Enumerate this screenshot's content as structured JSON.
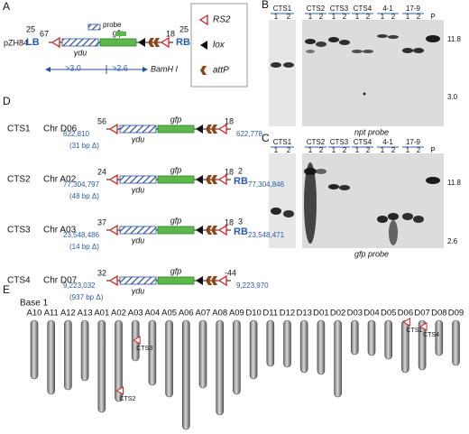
{
  "panel_a": {
    "letter": "A",
    "plasmid": "pZH84",
    "lb": "LB",
    "lb_len": "25",
    "left_gap": "67",
    "probe": "probe",
    "gfp": "gfp",
    "ydu": "γdu",
    "right_gap": "18",
    "rb": "RB",
    "rb_len": "25",
    "frag_left": ">3.0",
    "frag_right": ">2.6",
    "enzyme": "BamH I"
  },
  "legend": [
    "RS2",
    "lox",
    "attP"
  ],
  "panel_b": {
    "letter": "B",
    "groups": [
      {
        "name": "CTS1",
        "lanes": [
          "1",
          "2"
        ]
      },
      {
        "name": "CTS2",
        "lanes": [
          "1",
          "2"
        ]
      },
      {
        "name": "CTS3",
        "lanes": [
          "1",
          "2"
        ]
      },
      {
        "name": "CTS4",
        "lanes": [
          "1",
          "2"
        ]
      },
      {
        "name": "4-1",
        "lanes": [
          "1",
          "2"
        ]
      },
      {
        "name": "17-9",
        "lanes": [
          "1",
          "2"
        ]
      }
    ],
    "parent": "P",
    "markers": [
      "11.8",
      "3.0"
    ],
    "probe": "npt probe"
  },
  "panel_c": {
    "letter": "C",
    "groups": [
      {
        "name": "CTS1",
        "lanes": [
          "1",
          "2"
        ]
      },
      {
        "name": "CTS2",
        "lanes": [
          "1",
          "2"
        ]
      },
      {
        "name": "CTS3",
        "lanes": [
          "1",
          "2"
        ]
      },
      {
        "name": "CTS4",
        "lanes": [
          "1",
          "2"
        ]
      },
      {
        "name": "4-1",
        "lanes": [
          "1",
          "2"
        ]
      },
      {
        "name": "17-9",
        "lanes": [
          "1",
          "2"
        ]
      }
    ],
    "parent": "P",
    "markers": [
      "11.8",
      "2.6"
    ],
    "probe": "gfp probe"
  },
  "panel_d": {
    "letter": "D",
    "rows": [
      {
        "line": "CTS1",
        "chr": "Chr D06",
        "left_gap": "56",
        "right_gap": "18",
        "left_coord": "622,810",
        "deletion": "(31 bp Δ)",
        "right_coord": "622,778"
      },
      {
        "line": "CTS2",
        "chr": "Chr A02",
        "left_gap": "24",
        "right_gap": "18",
        "rb_len": "2",
        "rb": "RB",
        "left_coord": "77,304,797",
        "deletion": "(48 bp Δ)",
        "right_coord": "77,304,846"
      },
      {
        "line": "CTS3",
        "chr": "Chr A03",
        "left_gap": "37",
        "right_gap": "18",
        "rb_len": "3",
        "rb": "RB",
        "left_coord": "23,548,486",
        "deletion": "(14 bp Δ)",
        "right_coord": "23,548,471"
      },
      {
        "line": "CTS4",
        "chr": "Chr D07",
        "left_gap": "32",
        "right_gap": "-44",
        "left_coord": "9,223,032",
        "deletion": "(937 bp Δ)",
        "right_coord": "9,223,970"
      }
    ]
  },
  "panel_e": {
    "letter": "E",
    "genome": "Base 1",
    "chromosomes": [
      "A10",
      "A11",
      "A12",
      "A13",
      "A01",
      "A02",
      "A03",
      "A04",
      "A05",
      "A06",
      "A07",
      "A08",
      "A09",
      "D10",
      "D11",
      "D12",
      "D13",
      "D01",
      "D02",
      "D03",
      "D04",
      "D05",
      "D06",
      "D07",
      "D08",
      "D09"
    ],
    "insertions": [
      "CTS3",
      "CTS2",
      "CTS1",
      "CTS4"
    ]
  }
}
